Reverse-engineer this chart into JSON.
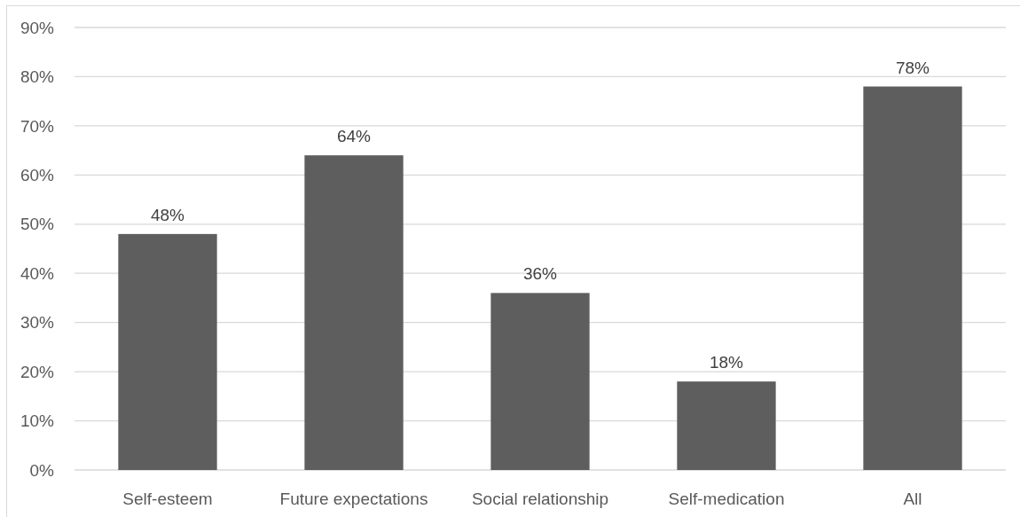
{
  "chart_data": {
    "type": "bar",
    "categories": [
      "Self-esteem",
      "Future expectations",
      "Social relationship",
      "Self-medication",
      "All"
    ],
    "values": [
      48,
      64,
      36,
      18,
      78
    ],
    "color": "#5e5e5e",
    "value_labels": [
      "48%",
      "64%",
      "36%",
      "18%",
      "78%"
    ],
    "ylim": [
      0,
      90
    ],
    "yticks": [
      {
        "value": 0,
        "label": "0%"
      },
      {
        "value": 10,
        "label": "10%"
      },
      {
        "value": 20,
        "label": "20%"
      },
      {
        "value": 30,
        "label": "30%"
      },
      {
        "value": 40,
        "label": "40%"
      },
      {
        "value": 50,
        "label": "50%"
      },
      {
        "value": 60,
        "label": "60%"
      },
      {
        "value": 70,
        "label": "70%"
      },
      {
        "value": 80,
        "label": "80%"
      },
      {
        "value": 90,
        "label": "90%"
      }
    ],
    "grid": "y"
  }
}
